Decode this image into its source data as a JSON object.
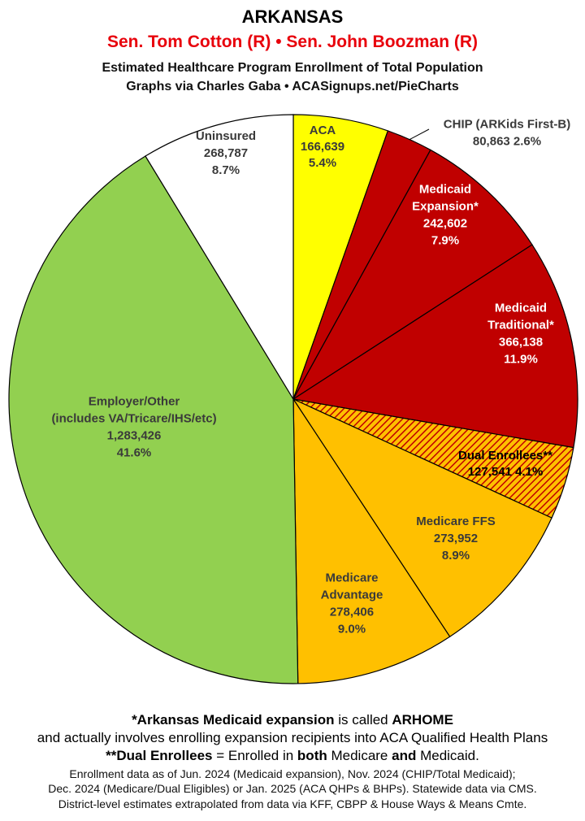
{
  "header": {
    "title": "ARKANSAS",
    "senators": "Sen. Tom Cotton (R) • Sen. John Boozman (R)",
    "subtitle": "Estimated Healthcare Program Enrollment of Total Population",
    "credit": "Graphs via Charles Gaba  •  ACASignups.net/PieCharts"
  },
  "chart_data": {
    "type": "pie",
    "start_angle_deg": 0,
    "direction": "clockwise",
    "slices": [
      {
        "label": "ACA",
        "value": 166639,
        "percent": "5.4%",
        "color": "#ffff00",
        "text_color": "#3a3a3a",
        "lines": [
          "ACA",
          "166,639",
          "5.4%"
        ]
      },
      {
        "label": "CHIP (ARKids First-B)",
        "value": 80863,
        "percent": "2.6%",
        "color": "#c00000",
        "text_color": "#3a3a3a",
        "outside": true,
        "lines": [
          "CHIP (ARKids First-B)",
          "80,863 2.6%"
        ]
      },
      {
        "label": "Medicaid Expansion*",
        "value": 242602,
        "percent": "7.9%",
        "color": "#c00000",
        "text_color": "#ffffff",
        "lines": [
          "Medicaid",
          "Expansion*",
          "242,602",
          "7.9%"
        ]
      },
      {
        "label": "Medicaid Traditional*",
        "value": 366138,
        "percent": "11.9%",
        "color": "#c00000",
        "text_color": "#ffffff",
        "lines": [
          "Medicaid",
          "Traditional*",
          "366,138",
          "11.9%"
        ]
      },
      {
        "label": "Dual Enrollees**",
        "value": 127541,
        "percent": "4.1%",
        "color": "#ffc000",
        "hatched": true,
        "text_color": "#000000",
        "lines": [
          "Dual Enrollees**",
          "127,541 4.1%"
        ]
      },
      {
        "label": "Medicare FFS",
        "value": 273952,
        "percent": "8.9%",
        "color": "#ffc000",
        "text_color": "#3a3a3a",
        "lines": [
          "Medicare FFS",
          "273,952",
          "8.9%"
        ]
      },
      {
        "label": "Medicare Advantage",
        "value": 278406,
        "percent": "9.0%",
        "color": "#ffc000",
        "text_color": "#3a3a3a",
        "lines": [
          "Medicare",
          "Advantage",
          "278,406",
          "9.0%"
        ]
      },
      {
        "label": "Employer/Other (includes VA/Tricare/IHS/etc)",
        "value": 1283426,
        "percent": "41.6%",
        "color": "#92d050",
        "text_color": "#3a3a3a",
        "lines": [
          "Employer/Other",
          "(includes VA/Tricare/IHS/etc)",
          "1,283,426",
          "41.6%"
        ]
      },
      {
        "label": "Uninsured",
        "value": 268787,
        "percent": "8.7%",
        "color": "#ffffff",
        "text_color": "#3a3a3a",
        "lines": [
          "Uninsured",
          "268,787",
          "8.7%"
        ]
      }
    ]
  },
  "footnotes": {
    "line1_a": "*Arkansas Medicaid expansion",
    "line1_b": " is called ",
    "line1_c": "ARHOME",
    "line2": "and actually involves enrolling expansion recipients into ACA Qualified Health Plans",
    "line3_a": "**Dual Enrollees",
    "line3_b": " = Enrolled in ",
    "line3_c": "both",
    "line3_d": " Medicare ",
    "line3_e": "and",
    "line3_f": " Medicaid.",
    "line4": "Enrollment data as of Jun. 2024 (Medicaid expansion), Nov. 2024 (CHIP/Total Medicaid);",
    "line5": "Dec. 2024 (Medicare/Dual Eligibles) or Jan. 2025 (ACA QHPs & BHPs). Statewide data via CMS.",
    "line6": "District-level estimates extrapolated from data via KFF, CBPP & House Ways & Means Cmte."
  }
}
